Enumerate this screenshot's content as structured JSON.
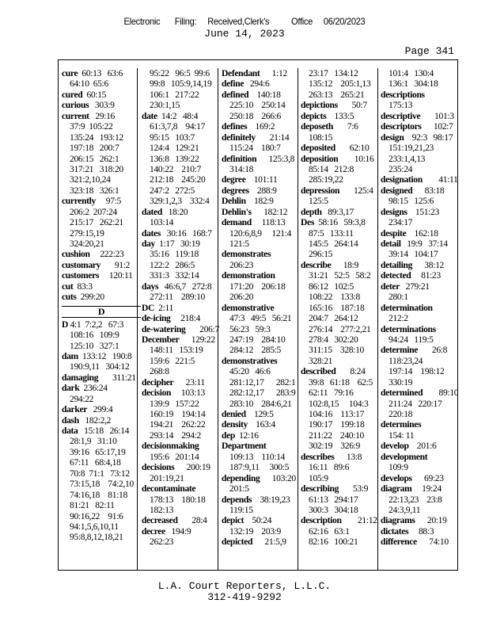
{
  "header": {
    "filing_stamp": "Electronic    Filing:   Received,Clerk's      Office   06/20/2023",
    "date": "June 14, 2023",
    "page": "Page 341"
  },
  "columns": [
    [
      {
        "term": "cure",
        "refs": "  60:13   63:6"
      },
      {
        "refs": "64:10  65:6"
      },
      {
        "term": "cured",
        "refs": "  60:15"
      },
      {
        "term": "curious",
        "refs": "   303:9"
      },
      {
        "term": "current",
        "refs": "   29:16"
      },
      {
        "refs": "37:9  105:22"
      },
      {
        "refs": "135:24   193:12"
      },
      {
        "refs": "197:18   200:7"
      },
      {
        "refs": "206:15   262:1"
      },
      {
        "refs": "317:21   318:20"
      },
      {
        "refs": "321:2,10,24"
      },
      {
        "refs": "323:18   326:1"
      },
      {
        "term": "currently",
        "refs": "     97:5"
      },
      {
        "refs": "206:2  207:24"
      },
      {
        "refs": "215:17   262:21"
      },
      {
        "refs": "279:15,19"
      },
      {
        "refs": "324:20,21"
      },
      {
        "term": "cushion",
        "refs": "     222:23"
      },
      {
        "term": "customary",
        "refs": "       91:2"
      },
      {
        "term": "customers",
        "refs": "     120:11"
      },
      {
        "term": "cut",
        "refs": "  83:3"
      },
      {
        "term": "cuts",
        "refs": "  299:20"
      },
      {
        "header": "D"
      },
      {
        "term": "D",
        "refs": " 4:1  7:2,2   67:3"
      },
      {
        "refs": "108:16   109:9"
      },
      {
        "refs": "125:10   327:1"
      },
      {
        "term": "dam",
        "refs": "  133:12   190:8"
      },
      {
        "refs": "190:9,11   304:12"
      },
      {
        "term": "damaging",
        "refs": "       311:21"
      },
      {
        "term": "dark",
        "refs": "  236:24"
      },
      {
        "refs": "294:22"
      },
      {
        "term": "darker",
        "refs": "   299:4"
      },
      {
        "term": "dash",
        "refs": "   182:2,2"
      },
      {
        "term": "data",
        "refs": "   15:18   26:14"
      },
      {
        "refs": "28:1,9   31:10"
      },
      {
        "refs": "39:16   65:17,19"
      },
      {
        "refs": "67:11   68:4,18"
      },
      {
        "refs": "70:8  71:1   73:12"
      },
      {
        "refs": "73:15,18    74:2,10"
      },
      {
        "refs": "74:16,18    81:18"
      },
      {
        "refs": "81:21   82:11"
      },
      {
        "refs": "90:16,22    91:6"
      },
      {
        "refs": "94:1,5,6,10,11"
      },
      {
        "refs": "95:8,8,12,18,21"
      }
    ],
    [
      {
        "refs": "95:22   96:5  99:6"
      },
      {
        "refs": "99:8   105:9,14,19"
      },
      {
        "refs": "106:1   217:22"
      },
      {
        "refs": "230:1,15"
      },
      {
        "term": "date",
        "refs": "  14:2   48:4"
      },
      {
        "refs": "61:3,7,8    94:17"
      },
      {
        "refs": "95:15   103:7"
      },
      {
        "refs": "124:4   129:21"
      },
      {
        "refs": "136:8   139:22"
      },
      {
        "refs": "140:22    210:7"
      },
      {
        "refs": "212:18    245:20"
      },
      {
        "refs": "247:2   272:5"
      },
      {
        "refs": "329:1,2,3    332:4"
      },
      {
        "term": "dated",
        "refs": "   18:20"
      },
      {
        "refs": "103:14"
      },
      {
        "term": "dates",
        "refs": "   30:16   168:7"
      },
      {
        "term": "day",
        "refs": "  1:17   30:19"
      },
      {
        "refs": "35:16   119:18"
      },
      {
        "refs": "122:2   286:5"
      },
      {
        "refs": "331:3   332:14"
      },
      {
        "term": "days",
        "refs": "   46:6,7   272:8"
      },
      {
        "refs": "272:11    289:10"
      },
      {
        "term": "DC",
        "refs": "  2:11"
      },
      {
        "term": "de-icing",
        "refs": "     218:4"
      },
      {
        "term": "de-watering",
        "refs": "       206:7"
      },
      {
        "term": "December",
        "refs": "      129:22"
      },
      {
        "refs": "148:11   153:19"
      },
      {
        "refs": "159:6   221:5"
      },
      {
        "refs": "268:8"
      },
      {
        "term": "decipher",
        "refs": "      23:11"
      },
      {
        "term": "decision",
        "refs": "     103:13"
      },
      {
        "refs": "139:9   157:22"
      },
      {
        "refs": "160:19    194:14"
      },
      {
        "refs": "194:21    262:22"
      },
      {
        "refs": "293:14    294:2"
      },
      {
        "term": "decisionmaking"
      },
      {
        "refs": "195:6   201:14"
      },
      {
        "term": "decisions",
        "refs": "      200:19"
      },
      {
        "refs": "201:19,21"
      },
      {
        "term": "decontaminate"
      },
      {
        "refs": "178:13    180:18"
      },
      {
        "refs": "182:13"
      },
      {
        "term": "decreased",
        "refs": "       28:4"
      },
      {
        "term": "decree",
        "refs": "   194:9"
      },
      {
        "refs": "262:23"
      }
    ],
    [
      {
        "term": "Defendant",
        "refs": "      1:12"
      },
      {
        "term": "define",
        "refs": "   294:6"
      },
      {
        "term": "defined",
        "refs": "    140:18"
      },
      {
        "refs": "225:10    250:14"
      },
      {
        "refs": "250:18    266:6"
      },
      {
        "term": "defines",
        "refs": "    169:2"
      },
      {
        "term": "definitely",
        "refs": "       21:14"
      },
      {
        "refs": "115:24    180:7"
      },
      {
        "term": "definition",
        "refs": "      125:3,8"
      },
      {
        "refs": "314:18"
      },
      {
        "term": "degree",
        "refs": "    101:11"
      },
      {
        "term": "degrees",
        "refs": "    288:9"
      },
      {
        "term": "Dehlin",
        "refs": "    182:9"
      },
      {
        "term": "Dehlin's",
        "refs": "      182:12"
      },
      {
        "term": "demand",
        "refs": "     118:13"
      },
      {
        "refs": "120:6,8,9     121:4"
      },
      {
        "refs": "121:5"
      },
      {
        "term": "demonstrates"
      },
      {
        "refs": "206:23"
      },
      {
        "term": "demonstration"
      },
      {
        "refs": "171:20    206:18"
      },
      {
        "refs": "206:20"
      },
      {
        "term": "demonstrative"
      },
      {
        "refs": "47:3   49:5   56:21"
      },
      {
        "refs": "56:23   59:3"
      },
      {
        "refs": "247:19    284:10"
      },
      {
        "refs": "284:12    285:5"
      },
      {
        "term": "demonstratives"
      },
      {
        "refs": "45:20   46:6"
      },
      {
        "refs": "281:12,17      282:1"
      },
      {
        "refs": "282:12,17      283:9"
      },
      {
        "refs": "283:10    284:6,21"
      },
      {
        "term": "denied",
        "refs": "    129:5"
      },
      {
        "term": "density",
        "refs": "    163:4"
      },
      {
        "term": "dep",
        "refs": "  12:16"
      },
      {
        "term": "Department"
      },
      {
        "refs": "109:13    110:14"
      },
      {
        "refs": "187:9,11     300:5"
      },
      {
        "term": "depending",
        "refs": "      103:20"
      },
      {
        "refs": "201:5"
      },
      {
        "term": "depends",
        "refs": "    38:19,23"
      },
      {
        "refs": "119:15"
      },
      {
        "term": "depict",
        "refs": "    50:24"
      },
      {
        "refs": "132:19    203:9"
      },
      {
        "term": "depicted",
        "refs": "      21:5,9"
      }
    ],
    [
      {
        "refs": "23:17   134:12"
      },
      {
        "refs": "135:12    205:1,13"
      },
      {
        "refs": "263:13    265:21"
      },
      {
        "term": "depictions",
        "refs": "       50:7"
      },
      {
        "term": "depicts",
        "refs": "    133:5"
      },
      {
        "term": "deposeth",
        "refs": "       7:6"
      },
      {
        "refs": "108:15"
      },
      {
        "term": "deposited",
        "refs": "       62:10"
      },
      {
        "term": "deposition",
        "refs": "        10:16"
      },
      {
        "refs": "85:14   212:8"
      },
      {
        "refs": "285:19,22"
      },
      {
        "term": "depression",
        "refs": "       125:4"
      },
      {
        "refs": "125:5"
      },
      {
        "term": "depth",
        "refs": "   89:3,17"
      },
      {
        "term": "Des",
        "refs": "  58:16   59:3,8"
      },
      {
        "refs": "87:5   133:11"
      },
      {
        "refs": "145:5   264:14"
      },
      {
        "refs": "296:15"
      },
      {
        "term": "describe",
        "refs": "      18:9"
      },
      {
        "refs": "31:21   52:5   58:2"
      },
      {
        "refs": "86:12   102:5"
      },
      {
        "refs": "108:22    133:8"
      },
      {
        "refs": "165:16    187:18"
      },
      {
        "refs": "204:7   264:12"
      },
      {
        "refs": "276:14    277:2,21"
      },
      {
        "refs": "278:4   302:20"
      },
      {
        "refs": "311:15    328:10"
      },
      {
        "refs": "328:21"
      },
      {
        "term": "described",
        "refs": "       8:24"
      },
      {
        "refs": "39:8   61:18    62:5"
      },
      {
        "refs": "62:11   79:16"
      },
      {
        "refs": "102:8,15     104:3"
      },
      {
        "refs": "104:16    113:17"
      },
      {
        "refs": "190:17    199:18"
      },
      {
        "refs": "211:22    240:10"
      },
      {
        "refs": "302:19    326:9"
      },
      {
        "term": "describes",
        "refs": "      13:8"
      },
      {
        "refs": "16:11   89:6"
      },
      {
        "refs": "105:9"
      },
      {
        "term": "describing",
        "refs": "       53:9"
      },
      {
        "refs": "61:13   294:17"
      },
      {
        "refs": "300:3   304:18"
      },
      {
        "term": "description",
        "refs": "        21:12"
      },
      {
        "refs": "62:16   63:1"
      },
      {
        "refs": "82:16   100:21"
      }
    ],
    [
      {
        "refs": "101:4   130:4"
      },
      {
        "refs": "136:1   304:18"
      },
      {
        "term": "descriptions"
      },
      {
        "refs": "175:13"
      },
      {
        "term": "descriptive",
        "refs": "       101:3"
      },
      {
        "term": "descriptors",
        "refs": "      102:7"
      },
      {
        "term": "design",
        "refs": "    92:3   98:17"
      },
      {
        "refs": "151:19,21,23"
      },
      {
        "refs": "233:1,4,13"
      },
      {
        "refs": "235:24"
      },
      {
        "term": "designation",
        "refs": "        41:11"
      },
      {
        "term": "designed",
        "refs": "      83:18"
      },
      {
        "refs": "98:15   125:6"
      },
      {
        "term": "designs",
        "refs": "    151:23"
      },
      {
        "refs": "234:17"
      },
      {
        "term": "despite",
        "refs": "    162:18"
      },
      {
        "term": "detail",
        "refs": "   19:9   37:14"
      },
      {
        "refs": "39:14   104:17"
      },
      {
        "term": "detailing",
        "refs": "      38:12"
      },
      {
        "term": "detected",
        "refs": "     81:23"
      },
      {
        "term": "deter",
        "refs": "   279:21"
      },
      {
        "refs": "280:1"
      },
      {
        "term": "determination"
      },
      {
        "refs": "212:2"
      },
      {
        "term": "determinations"
      },
      {
        "refs": "94:24   119:5"
      },
      {
        "term": "determine",
        "refs": "       26:8"
      },
      {
        "refs": "118:23,24"
      },
      {
        "refs": "197:14    198:12"
      },
      {
        "refs": "330:19"
      },
      {
        "term": "determined",
        "refs": "        89:10"
      },
      {
        "refs": "211:24   220:17"
      },
      {
        "refs": "220:18"
      },
      {
        "term": "determines"
      },
      {
        "refs": "154: 11"
      },
      {
        "term": "develop",
        "refs": "    201:6"
      },
      {
        "term": "development"
      },
      {
        "refs": "109:9"
      },
      {
        "term": "develops",
        "refs": "      69:23"
      },
      {
        "term": "diagram",
        "refs": "     19:24"
      },
      {
        "refs": "22:13,23    23:8"
      },
      {
        "refs": "24:3,9,11"
      },
      {
        "term": "diagrams",
        "refs": "      20:19"
      },
      {
        "term": "dictates",
        "refs": "     88:3"
      },
      {
        "term": "difference",
        "refs": "      74:10"
      }
    ]
  ],
  "footer": {
    "company": "L.A. Court Reporters, L.L.C.",
    "phone": "312-419-9292"
  }
}
